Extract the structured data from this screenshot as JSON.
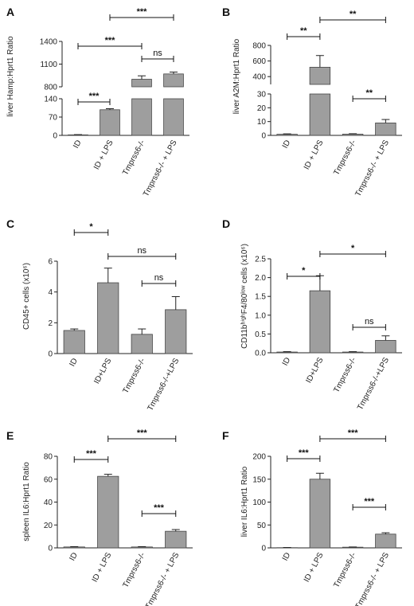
{
  "chart_data": [
    {
      "id": "A",
      "type": "bar",
      "letter": "A",
      "ylabel": "liver Hamp:Hprt1 Ratio",
      "categories": [
        "ID",
        "ID + LPS",
        "Tmprss6-/-",
        "Tmprss6-/- + LPS"
      ],
      "values": [
        2,
        98,
        900,
        970
      ],
      "errors": [
        1,
        4,
        45,
        25
      ],
      "broken_axis": true,
      "lower_range": [
        0,
        140
      ],
      "lower_ticks": [
        "0",
        "70",
        "140"
      ],
      "lower_tick_values": [
        0,
        70,
        140
      ],
      "upper_range": [
        800,
        1400
      ],
      "upper_ticks": [
        "800",
        "1100",
        "1400"
      ],
      "upper_tick_values": [
        800,
        1100,
        1400
      ],
      "significance": [
        {
          "from": 0,
          "to": 1,
          "label": "***",
          "level": 0,
          "seg": "lower"
        },
        {
          "from": 2,
          "to": 3,
          "label": "ns",
          "level": 0,
          "seg": "upper"
        },
        {
          "from": 0,
          "to": 2,
          "label": "***",
          "level": 1,
          "seg": "upper"
        },
        {
          "from": 1,
          "to": 3,
          "label": "***",
          "level": 2,
          "seg": "upper"
        }
      ]
    },
    {
      "id": "B",
      "type": "bar",
      "letter": "B",
      "ylabel": "liver A2M:Hprt1 Ratio",
      "categories": [
        "ID",
        "ID + LPS",
        "Tmprss6-/-",
        "Tmprss6-/- + LPS"
      ],
      "values": [
        0.8,
        520,
        0.9,
        9
      ],
      "errors": [
        0.3,
        150,
        0.3,
        2.5
      ],
      "broken_axis": true,
      "lower_range": [
        0,
        30
      ],
      "lower_ticks": [
        "0",
        "10",
        "20",
        "30"
      ],
      "lower_tick_values": [
        0,
        10,
        20,
        30
      ],
      "upper_range": [
        300,
        800
      ],
      "upper_ticks": [
        "400",
        "600",
        "800"
      ],
      "upper_tick_values": [
        400,
        600,
        800
      ],
      "significance": [
        {
          "from": 2,
          "to": 3,
          "label": "**",
          "level": 0,
          "seg": "lower"
        },
        {
          "from": 0,
          "to": 1,
          "label": "**",
          "level": 1,
          "seg": "upper"
        },
        {
          "from": 1,
          "to": 3,
          "label": "**",
          "level": 2,
          "seg": "upper"
        }
      ]
    },
    {
      "id": "C",
      "type": "bar",
      "letter": "C",
      "ylabel": "CD45+ cells (x10⁶)",
      "categories": [
        "ID",
        "ID+LPS",
        "Tmprss6-/-",
        "Tmprss6-/-+LPS"
      ],
      "values": [
        1.5,
        4.6,
        1.25,
        2.85
      ],
      "errors": [
        0.1,
        0.95,
        0.35,
        0.85
      ],
      "broken_axis": false,
      "range": [
        0,
        6
      ],
      "ticks": [
        "0",
        "2",
        "4",
        "6"
      ],
      "tick_values": [
        0,
        2,
        4,
        6
      ],
      "significance": [
        {
          "from": 2,
          "to": 3,
          "label": "ns",
          "level": 0
        },
        {
          "from": 1,
          "to": 3,
          "label": "ns",
          "level": 1
        },
        {
          "from": 0,
          "to": 1,
          "label": "*",
          "level": 2
        }
      ]
    },
    {
      "id": "D",
      "type": "bar",
      "letter": "D",
      "ylabel": "CD11bʰⁱᵍʰF4/80ˡᵒʷ cells (x10⁶)",
      "categories": [
        "ID",
        "ID+LPS",
        "Tmprss6-/-",
        "Tmprss6-/-+LPS"
      ],
      "values": [
        0.02,
        1.65,
        0.02,
        0.33
      ],
      "errors": [
        0.01,
        0.4,
        0.01,
        0.12
      ],
      "broken_axis": false,
      "range": [
        0,
        2.5
      ],
      "ticks": [
        "0.0",
        "0.5",
        "1.0",
        "1.5",
        "2.0",
        "2.5"
      ],
      "tick_values": [
        0,
        0.5,
        1.0,
        1.5,
        2.0,
        2.5
      ],
      "significance": [
        {
          "from": 2,
          "to": 3,
          "label": "ns",
          "level": 0
        },
        {
          "from": 0,
          "to": 1,
          "label": "*",
          "level": 1
        },
        {
          "from": 1,
          "to": 3,
          "label": "*",
          "level": 2
        }
      ]
    },
    {
      "id": "E",
      "type": "bar",
      "letter": "E",
      "ylabel": "spleen IL6:Hprt1 Ratio",
      "categories": [
        "ID",
        "ID + LPS",
        "Tmprss6-/-",
        "Tmprss6-/- + LPS"
      ],
      "values": [
        0.8,
        62.5,
        0.8,
        14.5
      ],
      "errors": [
        0.3,
        1.8,
        0.3,
        1.5
      ],
      "broken_axis": false,
      "range": [
        0,
        80
      ],
      "ticks": [
        "0",
        "20",
        "40",
        "60",
        "80"
      ],
      "tick_values": [
        0,
        20,
        40,
        60,
        80
      ],
      "significance": [
        {
          "from": 2,
          "to": 3,
          "label": "***",
          "level": 0
        },
        {
          "from": 0,
          "to": 1,
          "label": "***",
          "level": 1
        },
        {
          "from": 1,
          "to": 3,
          "label": "***",
          "level": 2
        }
      ]
    },
    {
      "id": "F",
      "type": "bar",
      "letter": "F",
      "ylabel": "liver IL6:Hprt1 Ratio",
      "categories": [
        "ID",
        "ID + LPS",
        "Tmprss6-/-",
        "Tmprss6-/- + LPS"
      ],
      "values": [
        0.5,
        150,
        1.5,
        30
      ],
      "errors": [
        0.3,
        13,
        0.5,
        3
      ],
      "broken_axis": false,
      "range": [
        0,
        200
      ],
      "ticks": [
        "0",
        "50",
        "100",
        "150",
        "200"
      ],
      "tick_values": [
        0,
        50,
        100,
        150,
        200
      ],
      "significance": [
        {
          "from": 2,
          "to": 3,
          "label": "***",
          "level": 0
        },
        {
          "from": 0,
          "to": 1,
          "label": "***",
          "level": 1
        },
        {
          "from": 1,
          "to": 3,
          "label": "***",
          "level": 2
        }
      ]
    }
  ],
  "colors": {
    "bar_fill": "#9e9e9e",
    "bar_stroke": "#444444",
    "axis": "#222222"
  }
}
